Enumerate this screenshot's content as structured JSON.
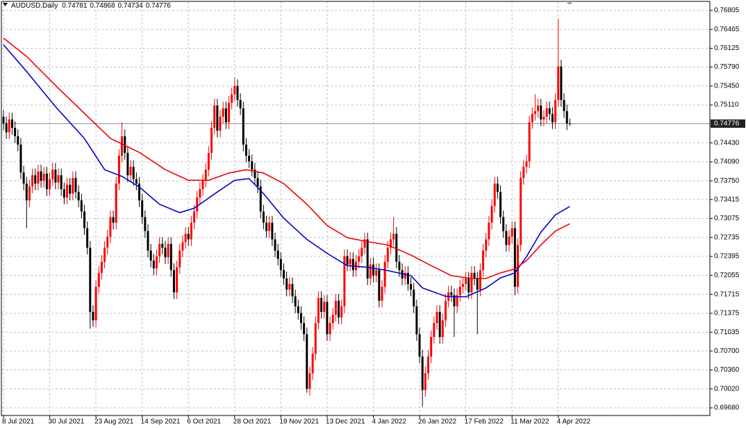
{
  "chart_data": {
    "type": "candlestick",
    "title": "AUDUSD,Daily",
    "categories": [
      "8 Jul 2021",
      null,
      null,
      null,
      null,
      null,
      null,
      null,
      null,
      null,
      null,
      null,
      null,
      null,
      null,
      null,
      "30 Jul 2021",
      null,
      null,
      null,
      null,
      null,
      null,
      null,
      null,
      null,
      null,
      null,
      null,
      null,
      null,
      null,
      "23 Aug 2021",
      null,
      null,
      null,
      null,
      null,
      null,
      null,
      null,
      null,
      null,
      null,
      null,
      null,
      null,
      null,
      "14 Sep 2021",
      null,
      null,
      null,
      null,
      null,
      null,
      null,
      null,
      null,
      null,
      null,
      null,
      null,
      null,
      null,
      "6 Oct 2021",
      null,
      null,
      null,
      null,
      null,
      null,
      null,
      null,
      null,
      null,
      null,
      null,
      null,
      null,
      null,
      "28 Oct 2021",
      null,
      null,
      null,
      null,
      null,
      null,
      null,
      null,
      null,
      null,
      null,
      null,
      null,
      null,
      null,
      "19 Nov 2021",
      null,
      null,
      null,
      null,
      null,
      null,
      null,
      null,
      null,
      null,
      null,
      null,
      null,
      null,
      null,
      "13 Dec 2021",
      null,
      null,
      null,
      null,
      null,
      null,
      null,
      null,
      null,
      null,
      null,
      null,
      null,
      null,
      null,
      "4 Jan 2022",
      null,
      null,
      null,
      null,
      null,
      null,
      null,
      null,
      null,
      null,
      null,
      null,
      null,
      null,
      null,
      "26 Jan 2022",
      null,
      null,
      null,
      null,
      null,
      null,
      null,
      null,
      null,
      null,
      null,
      null,
      null,
      null,
      null,
      "17 Feb 2022",
      null,
      null,
      null,
      null,
      null,
      null,
      null,
      null,
      null,
      null,
      null,
      null,
      null,
      null,
      null,
      "11 Mar 2022",
      null,
      null,
      null,
      null,
      null,
      null,
      null,
      null,
      null,
      null,
      null,
      null,
      null,
      null,
      null,
      "4 Apr 2022",
      null,
      null,
      null,
      null
    ],
    "open": [
      0.749,
      0.7478,
      0.7462,
      0.7485,
      0.747,
      0.7455,
      0.744,
      0.739,
      0.737,
      0.734,
      0.7365,
      0.7385,
      0.737,
      0.7392,
      0.7375,
      0.7388,
      0.736,
      0.7378,
      0.7395,
      0.7372,
      0.7385,
      0.736,
      0.7345,
      0.7368,
      0.7352,
      0.738,
      0.7355,
      0.734,
      0.732,
      0.729,
      0.7255,
      0.714,
      0.7125,
      0.7185,
      0.721,
      0.723,
      0.7255,
      0.7275,
      0.731,
      0.73,
      0.737,
      0.742,
      0.7455,
      0.7425,
      0.7385,
      0.74,
      0.7378,
      0.737,
      0.734,
      0.731,
      0.7285,
      0.725,
      0.7232,
      0.7218,
      0.724,
      0.7262,
      0.7255,
      0.7238,
      0.7262,
      0.7215,
      0.7175,
      0.722,
      0.725,
      0.7265,
      0.728,
      0.727,
      0.73,
      0.732,
      0.7345,
      0.736,
      0.7375,
      0.7395,
      0.7425,
      0.747,
      0.751,
      0.7465,
      0.749,
      0.7505,
      0.748,
      0.7515,
      0.753,
      0.7545,
      0.752,
      0.7505,
      0.744,
      0.742,
      0.741,
      0.7395,
      0.738,
      0.7365,
      0.732,
      0.73,
      0.7285,
      0.73,
      0.727,
      0.725,
      0.7235,
      0.7215,
      0.72,
      0.718,
      0.719,
      0.7168,
      0.715,
      0.7138,
      0.712,
      0.71,
      0.7002,
      0.703,
      0.7065,
      0.712,
      0.7165,
      0.714,
      0.7158,
      0.71,
      0.712,
      0.7135,
      0.716,
      0.713,
      0.715,
      0.724,
      0.7225,
      0.7235,
      0.7215,
      0.723,
      0.724,
      0.7255,
      0.727,
      0.72,
      0.7225,
      0.7205,
      0.7215,
      0.716,
      0.7185,
      0.723,
      0.7255,
      0.727,
      0.728,
      0.723,
      0.7215,
      0.72,
      0.721,
      0.719,
      0.718,
      0.715,
      0.71,
      0.706,
      0.7,
      0.703,
      0.706,
      0.7095,
      0.712,
      0.714,
      0.7095,
      0.7125,
      0.716,
      0.7175,
      0.717,
      0.715,
      0.717,
      0.7185,
      0.719,
      0.72,
      0.7175,
      0.721,
      0.72,
      0.718,
      0.7215,
      0.725,
      0.727,
      0.73,
      0.733,
      0.737,
      0.7355,
      0.731,
      0.7285,
      0.726,
      0.7275,
      0.729,
      0.7185,
      0.726,
      0.738,
      0.74,
      0.741,
      0.748,
      0.7495,
      0.75,
      0.751,
      0.7485,
      0.749,
      0.7505,
      0.7495,
      0.748,
      0.752,
      0.758,
      0.752,
      0.75,
      0.74781
    ],
    "high": [
      0.7502,
      0.749,
      0.7497,
      0.7497,
      0.7482,
      0.7467,
      0.7452,
      0.7402,
      0.7382,
      0.7377,
      0.7397,
      0.7397,
      0.7404,
      0.7404,
      0.74,
      0.74,
      0.739,
      0.7407,
      0.7407,
      0.7397,
      0.7397,
      0.7372,
      0.738,
      0.738,
      0.7392,
      0.7392,
      0.7367,
      0.7352,
      0.7332,
      0.7302,
      0.7267,
      0.7152,
      0.7197,
      0.7222,
      0.7242,
      0.7267,
      0.7287,
      0.7322,
      0.7322,
      0.7382,
      0.7432,
      0.748,
      0.7467,
      0.7437,
      0.7412,
      0.7412,
      0.739,
      0.7382,
      0.7352,
      0.7322,
      0.7297,
      0.7262,
      0.7244,
      0.7252,
      0.7274,
      0.7274,
      0.7267,
      0.7274,
      0.7274,
      0.7227,
      0.7232,
      0.7262,
      0.7277,
      0.7292,
      0.7292,
      0.7312,
      0.7332,
      0.7357,
      0.7372,
      0.7387,
      0.7407,
      0.7437,
      0.7482,
      0.7522,
      0.7522,
      0.7502,
      0.7517,
      0.7517,
      0.7527,
      0.7542,
      0.756,
      0.7557,
      0.7532,
      0.7517,
      0.7452,
      0.7432,
      0.7422,
      0.7407,
      0.7392,
      0.7377,
      0.7332,
      0.7312,
      0.7312,
      0.7312,
      0.7282,
      0.7262,
      0.7247,
      0.7227,
      0.7212,
      0.7202,
      0.7202,
      0.718,
      0.7162,
      0.715,
      0.7132,
      0.7112,
      0.7042,
      0.7077,
      0.7132,
      0.7177,
      0.7177,
      0.717,
      0.717,
      0.7132,
      0.7147,
      0.7172,
      0.7172,
      0.7162,
      0.7252,
      0.7252,
      0.7247,
      0.7247,
      0.7242,
      0.7252,
      0.7267,
      0.7282,
      0.7282,
      0.7237,
      0.7237,
      0.7227,
      0.7227,
      0.7197,
      0.7242,
      0.7267,
      0.7282,
      0.731,
      0.7292,
      0.7242,
      0.7227,
      0.7222,
      0.7222,
      0.7202,
      0.7192,
      0.7162,
      0.7112,
      0.7072,
      0.7042,
      0.7072,
      0.7107,
      0.7132,
      0.7152,
      0.7152,
      0.7137,
      0.7172,
      0.7187,
      0.7187,
      0.7182,
      0.7182,
      0.7197,
      0.7202,
      0.7212,
      0.7212,
      0.7222,
      0.7222,
      0.7212,
      0.7227,
      0.7262,
      0.7282,
      0.7312,
      0.7342,
      0.7382,
      0.7382,
      0.7367,
      0.7322,
      0.7297,
      0.7287,
      0.7302,
      0.7302,
      0.7272,
      0.7392,
      0.7412,
      0.7422,
      0.7492,
      0.7507,
      0.753,
      0.7522,
      0.7522,
      0.7502,
      0.7517,
      0.7517,
      0.7507,
      0.7532,
      0.7665,
      0.7592,
      0.7532,
      0.7512,
      0.74868
    ],
    "low": [
      0.7466,
      0.745,
      0.745,
      0.7458,
      0.7443,
      0.7428,
      0.7378,
      0.7358,
      0.729,
      0.7328,
      0.7353,
      0.7358,
      0.7358,
      0.7363,
      0.7363,
      0.7348,
      0.7348,
      0.7366,
      0.736,
      0.736,
      0.7348,
      0.7333,
      0.7333,
      0.734,
      0.734,
      0.7343,
      0.7328,
      0.7308,
      0.7278,
      0.7243,
      0.711,
      0.7113,
      0.7113,
      0.7173,
      0.7198,
      0.7218,
      0.7243,
      0.7263,
      0.7288,
      0.7288,
      0.7358,
      0.7408,
      0.7413,
      0.7373,
      0.7373,
      0.7366,
      0.7358,
      0.7328,
      0.7298,
      0.7273,
      0.7238,
      0.722,
      0.7206,
      0.7206,
      0.7228,
      0.7243,
      0.7226,
      0.7226,
      0.7203,
      0.7163,
      0.7163,
      0.7208,
      0.7238,
      0.7253,
      0.7258,
      0.7258,
      0.7288,
      0.7308,
      0.7333,
      0.7348,
      0.7363,
      0.7383,
      0.7413,
      0.7458,
      0.7453,
      0.7453,
      0.7478,
      0.7468,
      0.7468,
      0.7503,
      0.7518,
      0.7508,
      0.7493,
      0.7428,
      0.7408,
      0.7398,
      0.7383,
      0.7368,
      0.7353,
      0.7308,
      0.7288,
      0.7273,
      0.7273,
      0.7258,
      0.7238,
      0.7223,
      0.7203,
      0.7188,
      0.7168,
      0.7168,
      0.7156,
      0.7138,
      0.7126,
      0.7108,
      0.7088,
      0.6995,
      0.699,
      0.7018,
      0.7053,
      0.7108,
      0.7128,
      0.7128,
      0.7088,
      0.7088,
      0.7108,
      0.7123,
      0.7118,
      0.7118,
      0.7138,
      0.7213,
      0.7213,
      0.7203,
      0.7203,
      0.7218,
      0.7228,
      0.7243,
      0.7188,
      0.7188,
      0.7193,
      0.7193,
      0.7148,
      0.7148,
      0.7173,
      0.7218,
      0.7243,
      0.7258,
      0.7218,
      0.7203,
      0.7188,
      0.7188,
      0.7178,
      0.7168,
      0.7138,
      0.7088,
      0.7048,
      0.697,
      0.6988,
      0.7018,
      0.7048,
      0.7083,
      0.7108,
      0.7083,
      0.7083,
      0.7113,
      0.7148,
      0.7158,
      0.7095,
      0.7138,
      0.7158,
      0.7173,
      0.7178,
      0.7163,
      0.7163,
      0.7188,
      0.71,
      0.7168,
      0.7203,
      0.7238,
      0.7258,
      0.7288,
      0.7318,
      0.7343,
      0.7298,
      0.7273,
      0.7248,
      0.7248,
      0.7263,
      0.717,
      0.7173,
      0.7248,
      0.7368,
      0.7388,
      0.7398,
      0.7468,
      0.7483,
      0.7488,
      0.7473,
      0.7473,
      0.7478,
      0.7483,
      0.7468,
      0.7468,
      0.7508,
      0.7508,
      0.7488,
      0.7466,
      0.74734
    ],
    "close": [
      0.7478,
      0.7462,
      0.7485,
      0.747,
      0.7455,
      0.744,
      0.739,
      0.737,
      0.734,
      0.7365,
      0.7385,
      0.737,
      0.7392,
      0.7375,
      0.7388,
      0.736,
      0.7378,
      0.7395,
      0.7372,
      0.7385,
      0.736,
      0.7345,
      0.7368,
      0.7352,
      0.738,
      0.7355,
      0.734,
      0.732,
      0.729,
      0.7255,
      0.714,
      0.7125,
      0.7185,
      0.721,
      0.723,
      0.7255,
      0.7275,
      0.731,
      0.73,
      0.737,
      0.742,
      0.7455,
      0.7425,
      0.7385,
      0.74,
      0.7378,
      0.737,
      0.734,
      0.731,
      0.7285,
      0.725,
      0.7232,
      0.7218,
      0.724,
      0.7262,
      0.7255,
      0.7238,
      0.7262,
      0.7215,
      0.7175,
      0.722,
      0.725,
      0.7265,
      0.728,
      0.727,
      0.73,
      0.732,
      0.7345,
      0.736,
      0.7375,
      0.7395,
      0.7425,
      0.747,
      0.751,
      0.7465,
      0.749,
      0.7505,
      0.748,
      0.7515,
      0.753,
      0.7545,
      0.752,
      0.7505,
      0.744,
      0.742,
      0.741,
      0.7395,
      0.738,
      0.7365,
      0.732,
      0.73,
      0.7285,
      0.73,
      0.727,
      0.725,
      0.7235,
      0.7215,
      0.72,
      0.718,
      0.719,
      0.7168,
      0.715,
      0.7138,
      0.712,
      0.71,
      0.7002,
      0.703,
      0.7065,
      0.712,
      0.7165,
      0.714,
      0.7158,
      0.71,
      0.712,
      0.7135,
      0.716,
      0.713,
      0.715,
      0.724,
      0.7225,
      0.7235,
      0.7215,
      0.723,
      0.724,
      0.7255,
      0.727,
      0.72,
      0.7225,
      0.7205,
      0.7215,
      0.716,
      0.7185,
      0.723,
      0.7255,
      0.727,
      0.728,
      0.723,
      0.7215,
      0.72,
      0.721,
      0.719,
      0.718,
      0.715,
      0.71,
      0.706,
      0.7,
      0.703,
      0.706,
      0.7095,
      0.712,
      0.714,
      0.7095,
      0.7125,
      0.716,
      0.7175,
      0.717,
      0.715,
      0.717,
      0.7185,
      0.719,
      0.72,
      0.7175,
      0.721,
      0.72,
      0.718,
      0.7215,
      0.725,
      0.727,
      0.73,
      0.733,
      0.737,
      0.7355,
      0.731,
      0.7285,
      0.726,
      0.7275,
      0.729,
      0.7185,
      0.726,
      0.738,
      0.74,
      0.741,
      0.748,
      0.7495,
      0.75,
      0.751,
      0.7485,
      0.749,
      0.7505,
      0.7495,
      0.748,
      0.752,
      0.758,
      0.752,
      0.75,
      0.74781,
      0.74776
    ],
    "up_color": "#ff0000",
    "down_color": "#000000",
    "moving_averages": [
      {
        "color": "#0000c8",
        "x": [
          0,
          8,
          18,
          28,
          35,
          41,
          47,
          54,
          61,
          66,
          74,
          80,
          85,
          90,
          97,
          105,
          112,
          119,
          126,
          133,
          141,
          145,
          153,
          160,
          167,
          172,
          177,
          181,
          186,
          191,
          196
        ],
        "values": [
          0.7619,
          0.7571,
          0.7508,
          0.7451,
          0.7395,
          0.7383,
          0.7364,
          0.7333,
          0.7318,
          0.7326,
          0.7355,
          0.7376,
          0.7379,
          0.7352,
          0.7308,
          0.727,
          0.7245,
          0.7223,
          0.722,
          0.7214,
          0.7205,
          0.7183,
          0.7168,
          0.7167,
          0.7183,
          0.7201,
          0.721,
          0.7239,
          0.7283,
          0.7314,
          0.7329
        ]
      },
      {
        "color": "#ee0000",
        "x": [
          0,
          8,
          18,
          28,
          37,
          47,
          56,
          64,
          71,
          78,
          84,
          90,
          97,
          105,
          112,
          119,
          126,
          133,
          141,
          148,
          155,
          162,
          167,
          172,
          177,
          181,
          186,
          191,
          196
        ],
        "values": [
          0.7631,
          0.7598,
          0.7546,
          0.7496,
          0.7451,
          0.7426,
          0.7395,
          0.7376,
          0.7376,
          0.7389,
          0.7395,
          0.7389,
          0.737,
          0.7333,
          0.7295,
          0.7273,
          0.7266,
          0.726,
          0.7242,
          0.7223,
          0.7205,
          0.72,
          0.72,
          0.721,
          0.7217,
          0.7232,
          0.726,
          0.7285,
          0.7298
        ]
      }
    ],
    "current_price": 0.74776,
    "current_price_color": "#778899",
    "ylim": [
      0.69543,
      0.76992
    ],
    "yticks": [
      0.76805,
      0.76465,
      0.76125,
      {
        "value": 0.7579,
        "label": "0.75790"
      },
      {
        "value": 0.7545,
        "label": "0.75450"
      },
      {
        "value": 0.7511,
        "label": "0.75110"
      },
      {
        "value": 0.7443,
        "label": "0.74430"
      },
      {
        "value": 0.7409,
        "label": "0.74090"
      },
      {
        "value": 0.7375,
        "label": "0.73750"
      },
      0.73415,
      0.73075,
      0.72735,
      0.72395,
      0.72055,
      0.71715,
      0.71375,
      0.71035,
      {
        "value": 0.707,
        "label": "0.70700"
      },
      {
        "value": 0.7036,
        "label": "0.70360"
      },
      {
        "value": 0.7002,
        "label": "0.70020"
      },
      {
        "value": 0.6968,
        "label": "0.69680"
      }
    ],
    "grid": true
  }
}
